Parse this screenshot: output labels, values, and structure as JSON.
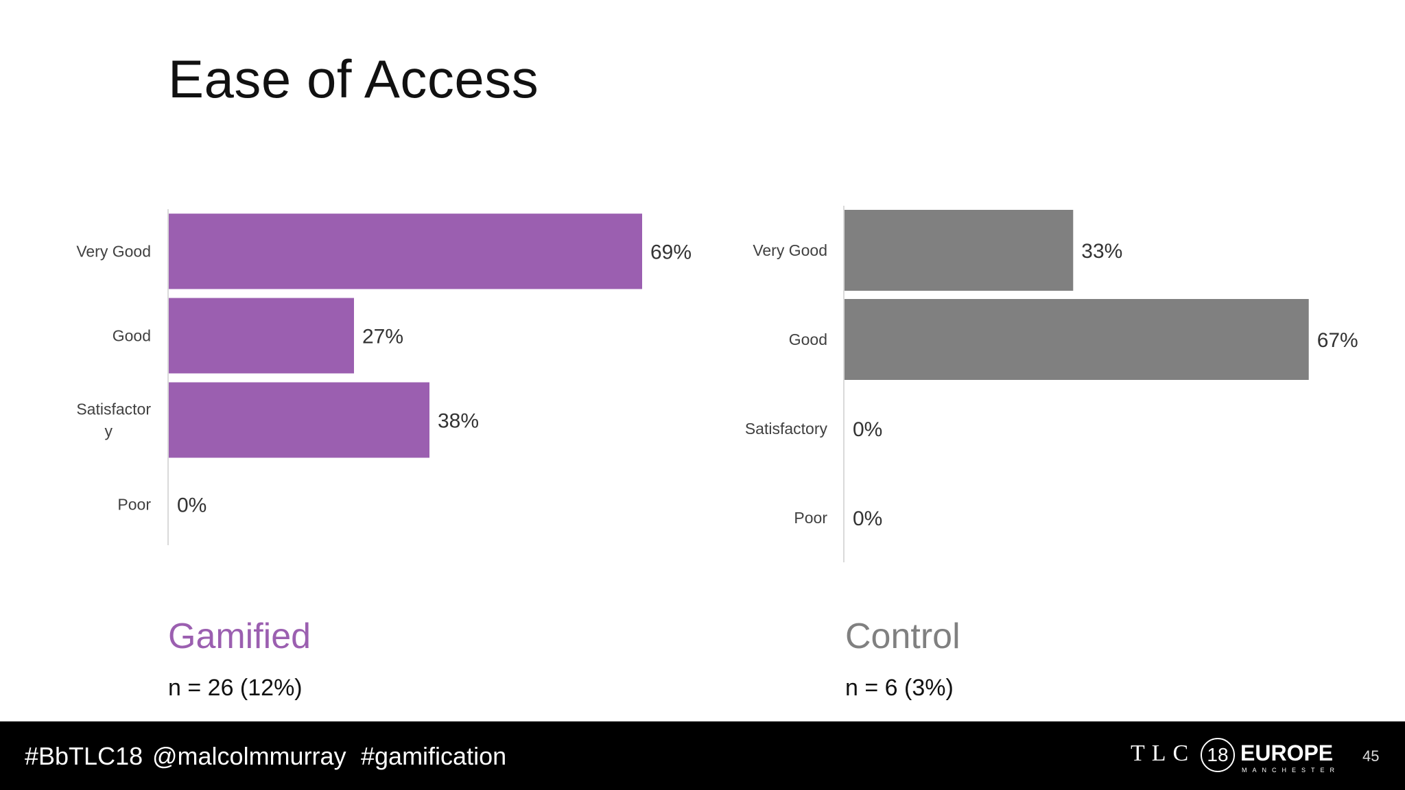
{
  "slide": {
    "title": "Ease of Access",
    "page_number": "45"
  },
  "footer": {
    "hashtags": [
      "#BbTLC18",
      "@malcolmmurray",
      "#gamification"
    ],
    "logo": {
      "tlc": "TLC",
      "number": "18",
      "europe": "EUROPE",
      "city": "MANCHESTER"
    }
  },
  "groups": [
    {
      "name": "Gamified",
      "n_label": "n = 26 (12%)",
      "color": "#9B5FB0"
    },
    {
      "name": "Control",
      "n_label": "n = 6 (3%)",
      "color": "#808080"
    }
  ],
  "chart_data": [
    {
      "type": "bar",
      "orientation": "horizontal",
      "categories": [
        "Very Good",
        "Good",
        "Satisfactory",
        "Poor"
      ],
      "values": [
        69,
        27,
        38,
        0
      ],
      "value_labels": [
        "69%",
        "27%",
        "38%",
        "0%"
      ],
      "color": "#9B5FB0",
      "xlim": [
        0,
        100
      ],
      "grid": false,
      "legend": "none"
    },
    {
      "type": "bar",
      "orientation": "horizontal",
      "categories": [
        "Very Good",
        "Good",
        "Satisfactory",
        "Poor"
      ],
      "values": [
        33,
        67,
        0,
        0
      ],
      "value_labels": [
        "33%",
        "67%",
        "0%",
        "0%"
      ],
      "color": "#808080",
      "xlim": [
        0,
        100
      ],
      "grid": false,
      "legend": "none"
    }
  ]
}
